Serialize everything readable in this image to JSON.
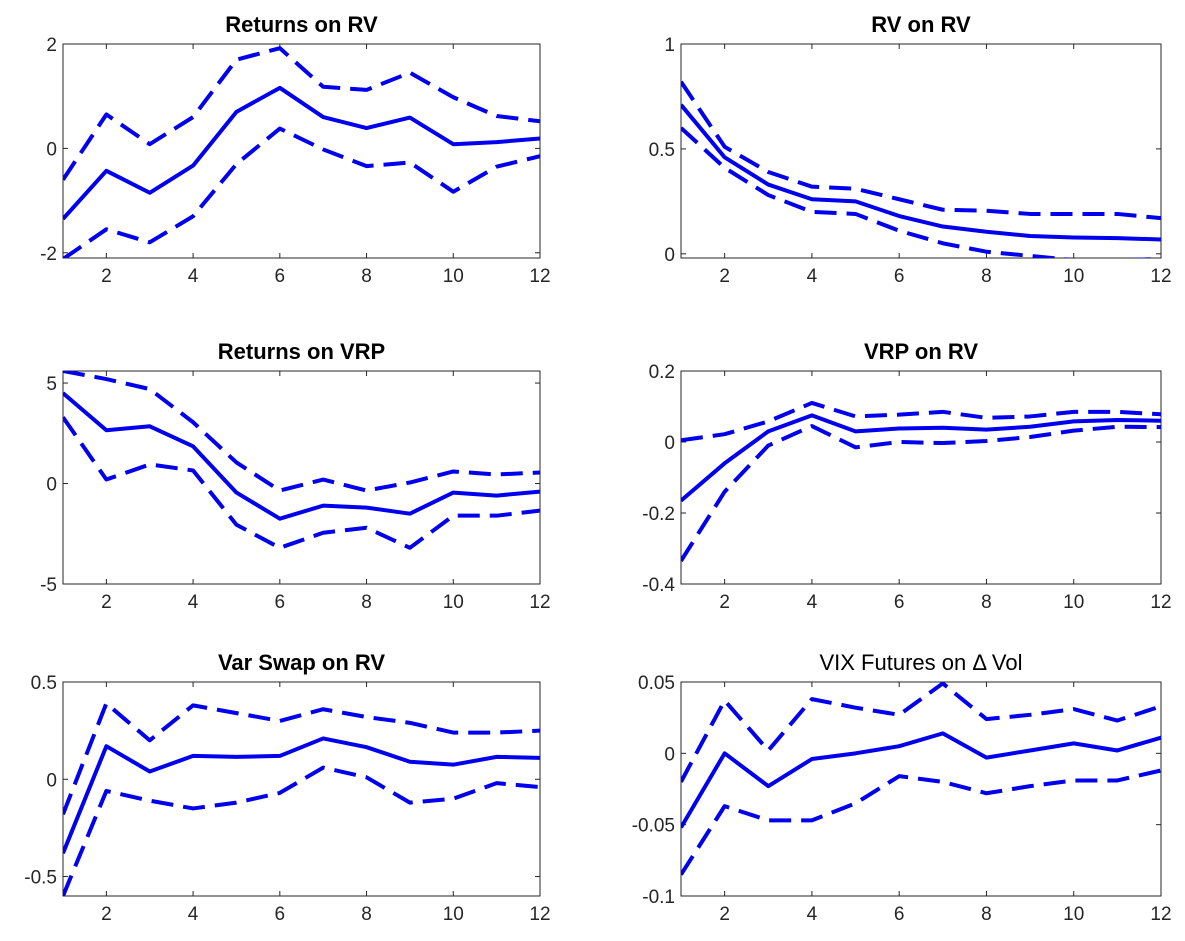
{
  "colors": {
    "series": "#0000ee",
    "axis": "#262626",
    "background": "#ffffff"
  },
  "chart_data": [
    {
      "type": "line",
      "title": "Returns on RV",
      "title_bold": true,
      "x": [
        1,
        2,
        3,
        4,
        5,
        6,
        7,
        8,
        9,
        10,
        11,
        12
      ],
      "xlim": [
        1,
        12
      ],
      "ylim": [
        -2.1,
        2
      ],
      "xticks": [
        "2",
        "4",
        "6",
        "8",
        "10",
        "12"
      ],
      "xtick_values": [
        2,
        4,
        6,
        8,
        10,
        12
      ],
      "yticks": [
        "-2",
        "0",
        "2"
      ],
      "ytick_values": [
        -2,
        0,
        2
      ],
      "grid": false,
      "series": [
        {
          "role": "estimate",
          "style": "solid",
          "values": [
            -1.35,
            -0.43,
            -0.85,
            -0.33,
            0.7,
            1.16,
            0.6,
            0.39,
            0.59,
            0.08,
            0.12,
            0.19
          ]
        },
        {
          "role": "upper",
          "style": "dashed",
          "values": [
            -0.6,
            0.65,
            0.08,
            0.6,
            1.7,
            1.92,
            1.18,
            1.12,
            1.45,
            0.98,
            0.62,
            0.52
          ]
        },
        {
          "role": "lower",
          "style": "dashed",
          "values": [
            -2.12,
            -1.55,
            -1.8,
            -1.3,
            -0.3,
            0.38,
            -0.02,
            -0.34,
            -0.27,
            -0.83,
            -0.35,
            -0.15
          ]
        }
      ]
    },
    {
      "type": "line",
      "title": "RV on RV",
      "title_bold": true,
      "x": [
        1,
        2,
        3,
        4,
        5,
        6,
        7,
        8,
        9,
        10,
        11,
        12
      ],
      "xlim": [
        1,
        12
      ],
      "ylim": [
        -0.02,
        1
      ],
      "xticks": [
        "2",
        "4",
        "6",
        "8",
        "10",
        "12"
      ],
      "xtick_values": [
        2,
        4,
        6,
        8,
        10,
        12
      ],
      "yticks": [
        "0",
        "0.5",
        "1"
      ],
      "ytick_values": [
        0,
        0.5,
        1
      ],
      "grid": false,
      "series": [
        {
          "role": "estimate",
          "style": "solid",
          "values": [
            0.71,
            0.46,
            0.33,
            0.26,
            0.25,
            0.18,
            0.13,
            0.105,
            0.085,
            0.078,
            0.075,
            0.068
          ]
        },
        {
          "role": "upper",
          "style": "dashed",
          "values": [
            0.82,
            0.51,
            0.39,
            0.32,
            0.31,
            0.26,
            0.21,
            0.205,
            0.19,
            0.19,
            0.19,
            0.17
          ]
        },
        {
          "role": "lower",
          "style": "dashed",
          "values": [
            0.6,
            0.41,
            0.28,
            0.2,
            0.19,
            0.11,
            0.05,
            0.01,
            -0.01,
            -0.03,
            -0.03,
            -0.025
          ]
        }
      ]
    },
    {
      "type": "line",
      "title": "Returns on VRP",
      "title_bold": true,
      "x": [
        1,
        2,
        3,
        4,
        5,
        6,
        7,
        8,
        9,
        10,
        11,
        12
      ],
      "xlim": [
        1,
        12
      ],
      "ylim": [
        -5,
        5.6
      ],
      "xticks": [
        "2",
        "4",
        "6",
        "8",
        "10",
        "12"
      ],
      "xtick_values": [
        2,
        4,
        6,
        8,
        10,
        12
      ],
      "yticks": [
        "-5",
        "0",
        "5"
      ],
      "ytick_values": [
        -5,
        0,
        5
      ],
      "grid": false,
      "series": [
        {
          "role": "estimate",
          "style": "solid",
          "values": [
            4.5,
            2.65,
            2.85,
            1.85,
            -0.45,
            -1.75,
            -1.1,
            -1.2,
            -1.5,
            -0.45,
            -0.6,
            -0.4
          ]
        },
        {
          "role": "upper",
          "style": "dashed",
          "values": [
            5.6,
            5.2,
            4.7,
            3.05,
            1.05,
            -0.35,
            0.2,
            -0.35,
            0.05,
            0.6,
            0.45,
            0.55
          ]
        },
        {
          "role": "lower",
          "style": "dashed",
          "values": [
            3.3,
            0.2,
            0.95,
            0.65,
            -2.05,
            -3.2,
            -2.45,
            -2.2,
            -3.2,
            -1.6,
            -1.6,
            -1.35
          ]
        }
      ]
    },
    {
      "type": "line",
      "title": "VRP on RV",
      "title_bold": true,
      "x": [
        1,
        2,
        3,
        4,
        5,
        6,
        7,
        8,
        9,
        10,
        11,
        12
      ],
      "xlim": [
        1,
        12
      ],
      "ylim": [
        -0.4,
        0.2
      ],
      "xticks": [
        "2",
        "4",
        "6",
        "8",
        "10",
        "12"
      ],
      "xtick_values": [
        2,
        4,
        6,
        8,
        10,
        12
      ],
      "yticks": [
        "-0.4",
        "-0.2",
        "0",
        "0.2"
      ],
      "ytick_values": [
        -0.4,
        -0.2,
        0,
        0.2
      ],
      "grid": false,
      "series": [
        {
          "role": "estimate",
          "style": "solid",
          "values": [
            -0.165,
            -0.06,
            0.03,
            0.075,
            0.03,
            0.038,
            0.04,
            0.035,
            0.043,
            0.058,
            0.062,
            0.06
          ]
        },
        {
          "role": "upper",
          "style": "dashed",
          "values": [
            0.005,
            0.022,
            0.058,
            0.11,
            0.072,
            0.077,
            0.085,
            0.068,
            0.072,
            0.085,
            0.085,
            0.078
          ]
        },
        {
          "role": "lower",
          "style": "dashed",
          "values": [
            -0.335,
            -0.14,
            -0.01,
            0.045,
            -0.015,
            0.0,
            -0.003,
            0.003,
            0.014,
            0.032,
            0.043,
            0.042
          ]
        }
      ]
    },
    {
      "type": "line",
      "title": "Var Swap on RV",
      "title_bold": true,
      "x": [
        1,
        2,
        3,
        4,
        5,
        6,
        7,
        8,
        9,
        10,
        11,
        12
      ],
      "xlim": [
        1,
        12
      ],
      "ylim": [
        -0.6,
        0.5
      ],
      "xticks": [
        "2",
        "4",
        "6",
        "8",
        "10",
        "12"
      ],
      "xtick_values": [
        2,
        4,
        6,
        8,
        10,
        12
      ],
      "yticks": [
        "-0.5",
        "0",
        "0.5"
      ],
      "ytick_values": [
        -0.5,
        0,
        0.5
      ],
      "grid": false,
      "series": [
        {
          "role": "estimate",
          "style": "solid",
          "values": [
            -0.38,
            0.17,
            0.04,
            0.12,
            0.115,
            0.12,
            0.21,
            0.165,
            0.09,
            0.075,
            0.115,
            0.11
          ]
        },
        {
          "role": "upper",
          "style": "dashed",
          "values": [
            -0.18,
            0.39,
            0.2,
            0.38,
            0.34,
            0.3,
            0.36,
            0.32,
            0.29,
            0.24,
            0.24,
            0.25
          ]
        },
        {
          "role": "lower",
          "style": "dashed",
          "values": [
            -0.6,
            -0.06,
            -0.11,
            -0.15,
            -0.12,
            -0.07,
            0.06,
            0.01,
            -0.12,
            -0.1,
            -0.02,
            -0.04
          ]
        }
      ]
    },
    {
      "type": "line",
      "title": "VIX Futures on Δ Vol",
      "title_bold": false,
      "x": [
        1,
        2,
        3,
        4,
        5,
        6,
        7,
        8,
        9,
        10,
        11,
        12
      ],
      "xlim": [
        1,
        12
      ],
      "ylim": [
        -0.1,
        0.05
      ],
      "xticks": [
        "2",
        "4",
        "6",
        "8",
        "10",
        "12"
      ],
      "xtick_values": [
        2,
        4,
        6,
        8,
        10,
        12
      ],
      "yticks": [
        "-0.1",
        "-0.05",
        "0",
        "0.05"
      ],
      "ytick_values": [
        -0.1,
        -0.05,
        0,
        0.05
      ],
      "grid": false,
      "series": [
        {
          "role": "estimate",
          "style": "solid",
          "values": [
            -0.052,
            0.0,
            -0.023,
            -0.004,
            0.0,
            0.005,
            0.014,
            -0.003,
            0.002,
            0.007,
            0.002,
            0.011
          ]
        },
        {
          "role": "upper",
          "style": "dashed",
          "values": [
            -0.02,
            0.037,
            0.002,
            0.038,
            0.032,
            0.027,
            0.049,
            0.024,
            0.027,
            0.031,
            0.023,
            0.033
          ]
        },
        {
          "role": "lower",
          "style": "dashed",
          "values": [
            -0.085,
            -0.037,
            -0.047,
            -0.047,
            -0.035,
            -0.016,
            -0.02,
            -0.028,
            -0.023,
            -0.019,
            -0.019,
            -0.012
          ]
        }
      ]
    }
  ]
}
